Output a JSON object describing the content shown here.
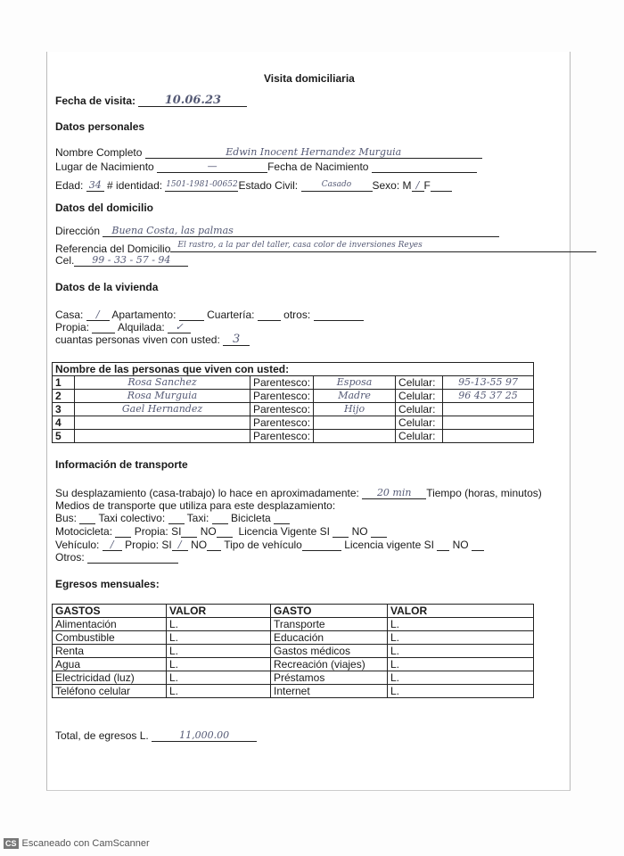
{
  "title": "Visita domiciliaria",
  "fecha_label": "Fecha de visita:",
  "fecha_value": "10.06.23",
  "personales": {
    "heading": "Datos personales",
    "nombre_label": "Nombre Completo",
    "nombre_value": "Edwin Inocent Hernandez Murguia",
    "lugar_label": "Lugar de Nacimiento",
    "lugar_value": "—",
    "fecha_nac_label": "Fecha de Nacimiento",
    "edad_label": "Edad:",
    "edad_value": "34",
    "identidad_label": "# identidad:",
    "identidad_value": "1501-1981-00652",
    "estado_label": "Estado Civil:",
    "estado_value": "Casado",
    "sexo_label": "Sexo: M",
    "sexo_m_value": "/",
    "sexo_f_label": "F"
  },
  "domicilio": {
    "heading": "Datos del domicilio",
    "direccion_label": "Dirección",
    "direccion_value": "Buena Costa, las palmas",
    "referencia_label": "Referencia del Domicilio",
    "referencia_value": "El rastro, a la par del taller, casa color de inversiones Reyes",
    "cel_label": "Cel.",
    "cel_value": "99 - 33 - 57 - 94"
  },
  "vivienda": {
    "heading": "Datos de la vivienda",
    "casa_label": "Casa:",
    "casa_value": "/",
    "apartamento_label": "Apartamento:",
    "cuarteria_label": "Cuartería:",
    "otros_label": "otros:",
    "propia_label": "Propia:",
    "alquilada_label": "Alquilada:",
    "alquilada_value": "✓",
    "personas_label": "cuantas personas viven con usted:",
    "personas_value": "3"
  },
  "personas_table": {
    "header": "Nombre de las personas que viven con usted:",
    "parentesco_label": "Parentesco:",
    "celular_label": "Celular:",
    "rows": [
      {
        "n": "1",
        "nombre": "Rosa Sanchez",
        "parentesco": "Esposa",
        "celular": "95-13-55 97"
      },
      {
        "n": "2",
        "nombre": "Rosa Murguia",
        "parentesco": "Madre",
        "celular": "96 45 37 25"
      },
      {
        "n": "3",
        "nombre": "Gael Hernandez",
        "parentesco": "Hijo",
        "celular": ""
      },
      {
        "n": "4",
        "nombre": "",
        "parentesco": "",
        "celular": ""
      },
      {
        "n": "5",
        "nombre": "",
        "parentesco": "",
        "celular": ""
      }
    ]
  },
  "transporte": {
    "heading": "Información de transporte",
    "desplazamiento_label": "Su desplazamiento (casa-trabajo) lo hace en aproximadamente:",
    "desplazamiento_value": "20 min",
    "tiempo_label": "Tiempo (horas, minutos)",
    "medios_label": "Medios de transporte que utiliza para este desplazamiento:",
    "bus_line": [
      "Bus:",
      "Taxi colectivo:",
      "Taxi:",
      "Bicicleta"
    ],
    "moto_line": [
      "Motocicleta:",
      "Propia: SI",
      "NO",
      "Licencia Vigente SI",
      "NO"
    ],
    "vehiculo_label": "Vehículo:",
    "vehiculo_value": "/",
    "propio_si_label": "Propio: SI",
    "propio_si_value": "/",
    "vehiculo_rest": [
      "NO",
      "Tipo de vehículo",
      "Licencia vigente SI",
      "NO"
    ],
    "otros_label": "Otros:"
  },
  "egresos": {
    "heading": "Egresos mensuales:",
    "headers": [
      "GASTOS",
      "VALOR",
      "GASTO",
      "VALOR"
    ],
    "rows": [
      [
        "Alimentación",
        "L.",
        "Transporte",
        "L."
      ],
      [
        "Combustible",
        "L.",
        "Educación",
        "L."
      ],
      [
        "Renta",
        "L.",
        "Gastos médicos",
        "L."
      ],
      [
        "Agua",
        "L.",
        "Recreación (viajes)",
        "L."
      ],
      [
        "Electricidad (luz)",
        "L.",
        "Préstamos",
        "L."
      ],
      [
        "Teléfono celular",
        "L.",
        "Internet",
        "L."
      ]
    ],
    "total_label": "Total, de egresos L.",
    "total_value": "11,000.00"
  },
  "footer": {
    "logo": "CS",
    "text": "Escaneado con CamScanner"
  }
}
